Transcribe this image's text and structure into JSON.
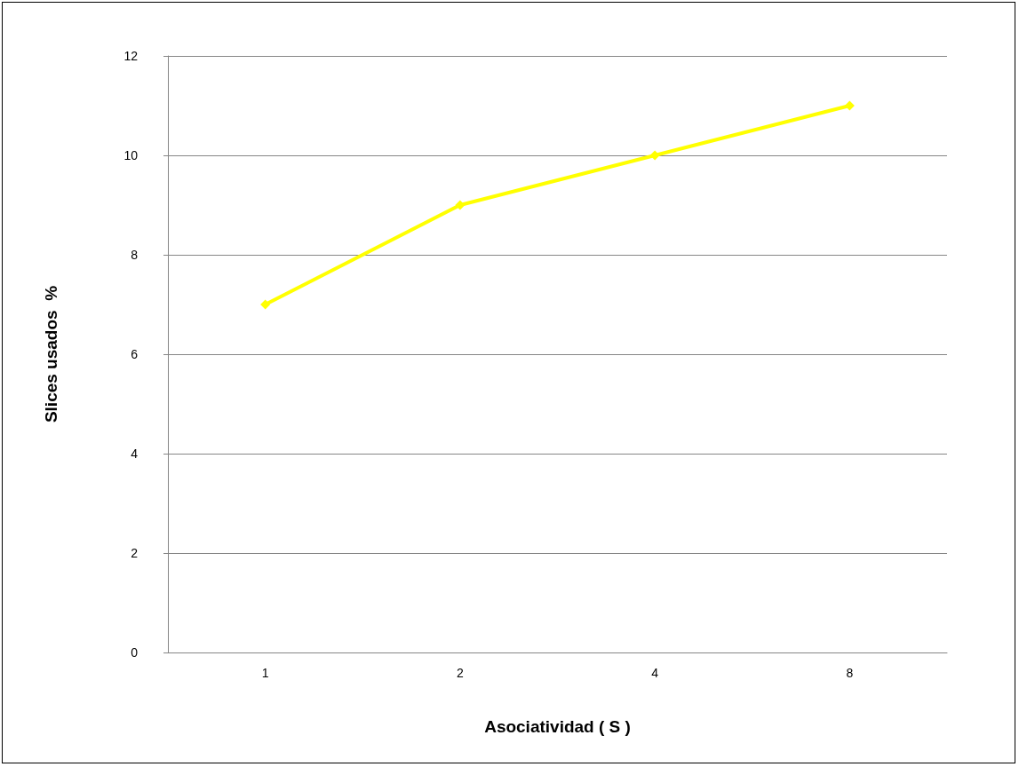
{
  "chart_data": {
    "type": "line",
    "xlabel": "Asociatividad ( S )",
    "ylabel": "Slices usados  %",
    "categories": [
      "1",
      "2",
      "4",
      "8"
    ],
    "series": [
      {
        "color": "#ffff00",
        "values": [
          7,
          9,
          10,
          11
        ]
      }
    ],
    "ylim": [
      0,
      12
    ],
    "yticks": [
      0,
      2,
      4,
      6,
      8,
      10,
      12
    ],
    "grid": "y",
    "marker": "diamond",
    "line_style": "solid"
  }
}
